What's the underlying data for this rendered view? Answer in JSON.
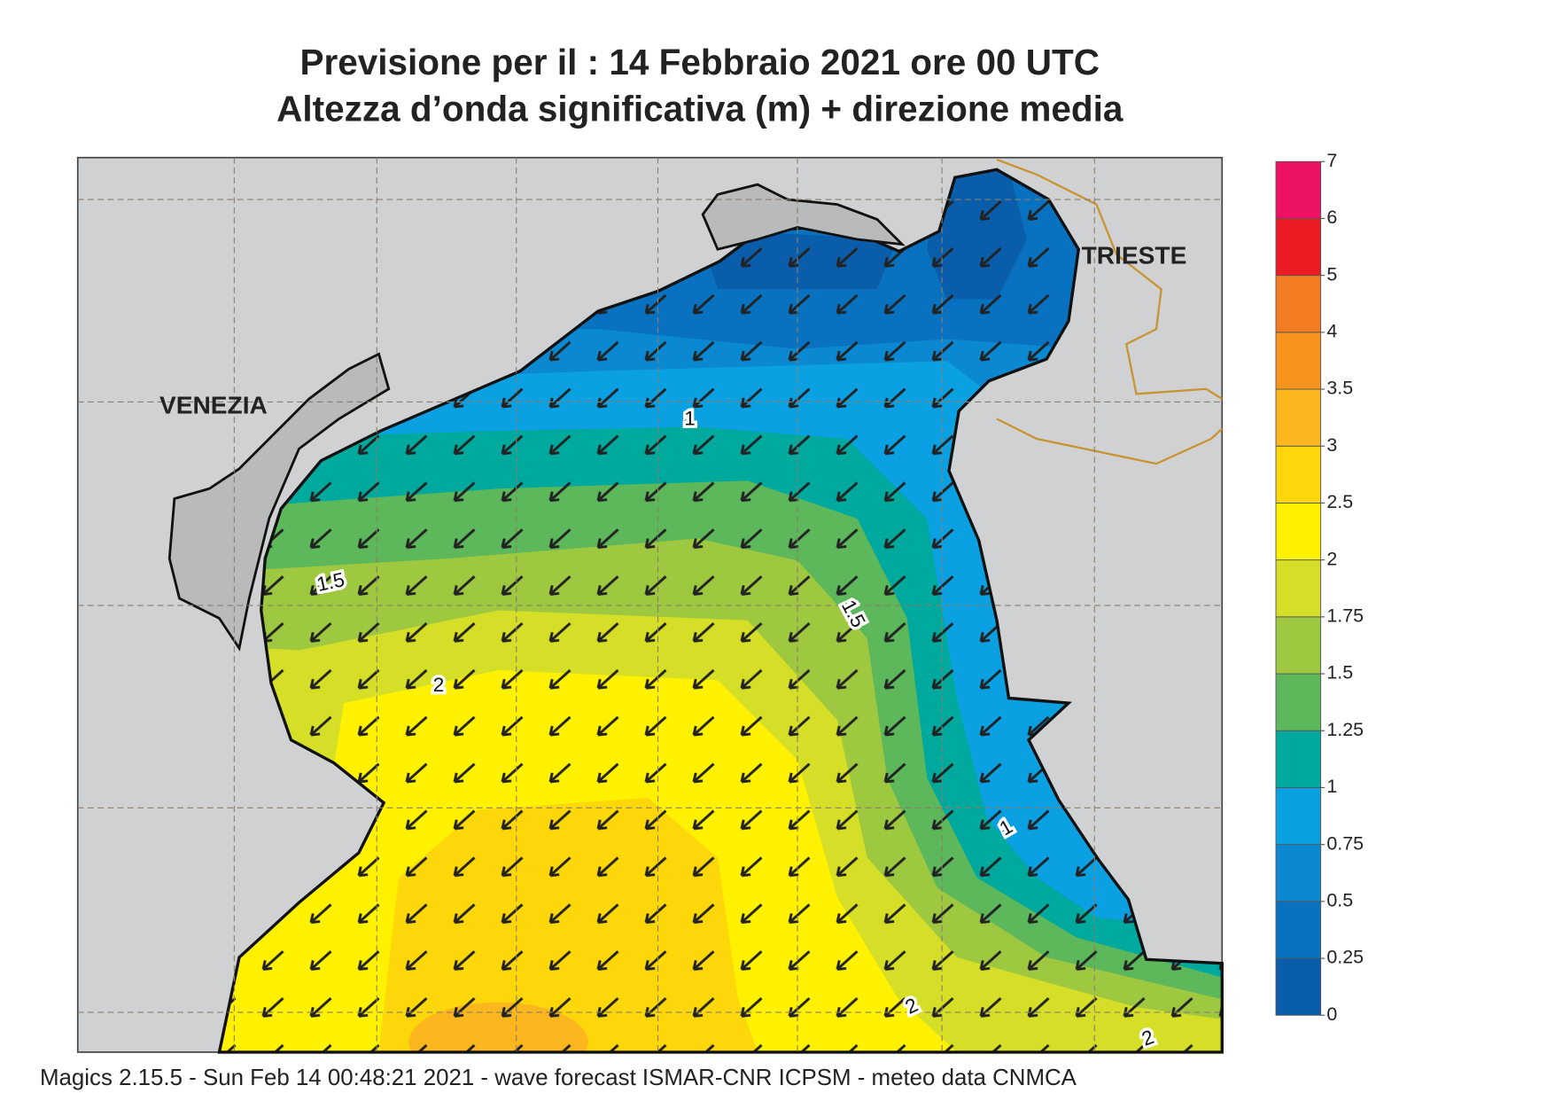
{
  "title": [
    "Previsione per il  :  14  Febbraio 2021   ore 00 UTC",
    "Altezza d’onda significativa (m) + direzione media"
  ],
  "footer": "Magics 2.15.5 - Sun Feb 14 00:48:21 2021 - wave forecast  ISMAR-CNR  ICPSM - meteo data   CNMCA",
  "cities": {
    "venezia": "VENEZIA",
    "trieste": "TRIESTE"
  },
  "colorbar": {
    "ticks": [
      0,
      0.25,
      0.5,
      0.75,
      1,
      1.25,
      1.5,
      1.75,
      2,
      2.5,
      3,
      3.5,
      4,
      5,
      6,
      7
    ],
    "colors": [
      "#0a5dab",
      "#0872c0",
      "#0a88d2",
      "#0aa0e2",
      "#00a99d",
      "#5cb85a",
      "#9fc841",
      "#d6df27",
      "#fff100",
      "#fdd70a",
      "#fbb71d",
      "#f7941d",
      "#f37b22",
      "#ed1c24",
      "#ec1163"
    ]
  },
  "contour_labels": [
    "1",
    "1.5",
    "1.5",
    "2",
    "1",
    "2",
    "2"
  ]
}
